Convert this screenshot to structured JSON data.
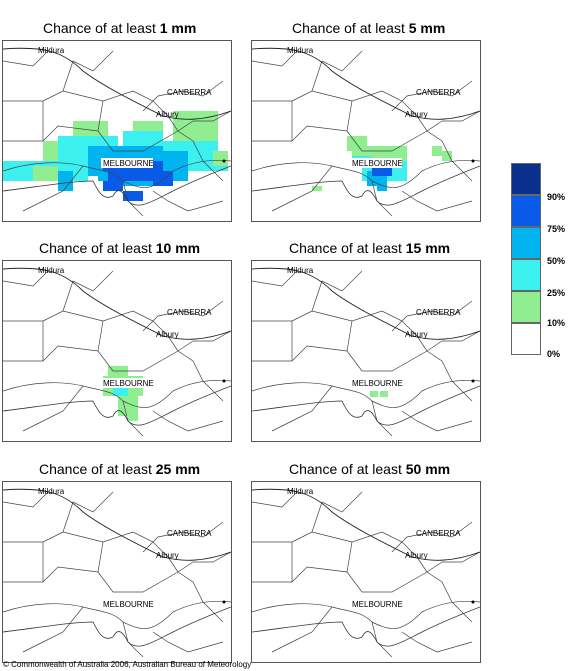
{
  "panels": [
    {
      "title_prefix": "Chance of at least ",
      "threshold": "1 mm"
    },
    {
      "title_prefix": "Chance of at least ",
      "threshold": "5 mm"
    },
    {
      "title_prefix": "Chance of at least ",
      "threshold": "10 mm"
    },
    {
      "title_prefix": "Chance of at least ",
      "threshold": "15 mm"
    },
    {
      "title_prefix": "Chance of at least ",
      "threshold": "25 mm"
    },
    {
      "title_prefix": "Chance of at least ",
      "threshold": "50 mm"
    }
  ],
  "places": {
    "mildura": "Mildura",
    "canberra": "CANBERRA",
    "albury": "Albury",
    "melbourne": "MELBOURNE"
  },
  "legend": {
    "labels": [
      "90%",
      "75%",
      "50%",
      "25%",
      "10%",
      "0%"
    ],
    "colors": [
      "#0a2f8c",
      "#0a5ae8",
      "#00b4f0",
      "#3cf0f0",
      "#90ee90",
      "#ffffff"
    ]
  },
  "copyright": "© Commonwealth of Australia 2006, Australian Bureau of Meteorology"
}
